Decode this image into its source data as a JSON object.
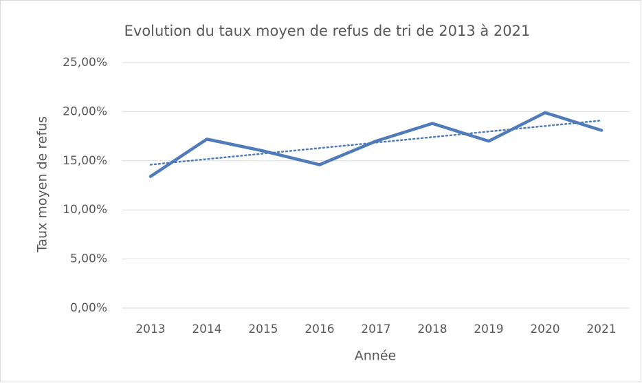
{
  "chart_data": {
    "type": "line",
    "title": "Evolution du taux moyen de refus de tri de 2013 à 2021",
    "x_label": "Année",
    "y_label": "Taux moyen de refus",
    "categories": [
      "2013",
      "2014",
      "2015",
      "2016",
      "2017",
      "2018",
      "2019",
      "2020",
      "2021"
    ],
    "series": [
      {
        "color": "#4f7bb9",
        "values": [
          13.4,
          17.2,
          16.0,
          14.6,
          17.0,
          18.8,
          17.0,
          19.9,
          18.1
        ]
      }
    ],
    "trendline": {
      "color": "#4f7bb9",
      "style": "dotted",
      "values": [
        14.6,
        15.17,
        15.73,
        16.29,
        16.85,
        17.41,
        17.98,
        18.54,
        19.1
      ]
    },
    "ylim": [
      0,
      25
    ],
    "yticks": [
      {
        "value": 0,
        "label": "0,00%"
      },
      {
        "value": 5,
        "label": "5,00%"
      },
      {
        "value": 10,
        "label": "10,00%"
      },
      {
        "value": 15,
        "label": "15,00%"
      },
      {
        "value": 20,
        "label": "20,00%"
      },
      {
        "value": 25,
        "label": "25,00%"
      }
    ],
    "grid": true
  }
}
